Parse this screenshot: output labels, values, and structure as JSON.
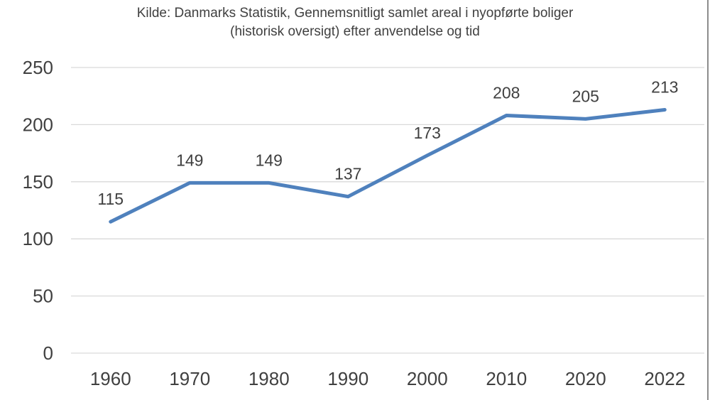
{
  "chart_data": {
    "type": "line",
    "title_lines": [
      "Kilde: Danmarks Statistik, Gennemsnitligt samlet areal i nyopførte boliger",
      "(historisk oversigt) efter anvendelse og tid"
    ],
    "categories": [
      "1960",
      "1970",
      "1980",
      "1990",
      "2000",
      "2010",
      "2020",
      "2022"
    ],
    "values": [
      115,
      149,
      149,
      137,
      173,
      208,
      205,
      213
    ],
    "ylim": [
      0,
      250
    ],
    "yticks": [
      0,
      50,
      100,
      150,
      200,
      250
    ],
    "grid": true,
    "legend": "none",
    "data_labels": true,
    "line_color": "#4F81BD",
    "grid_color": "#d9d9d9",
    "text_color": "#404040"
  }
}
